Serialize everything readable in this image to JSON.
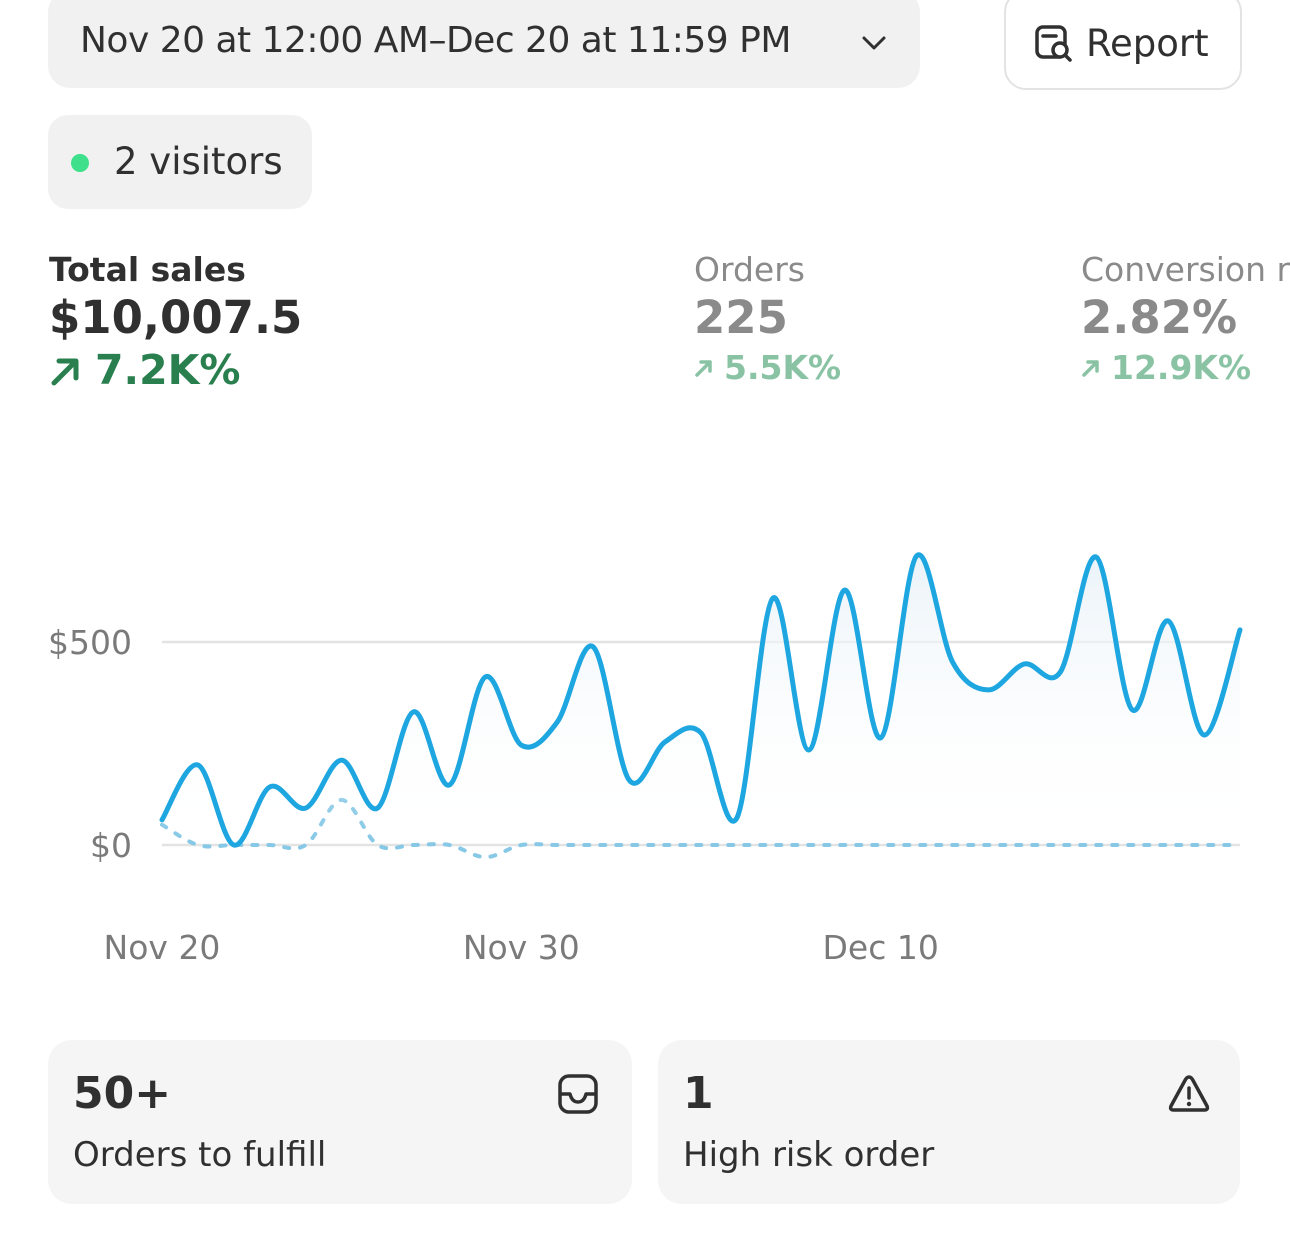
{
  "header": {
    "date_range": "Nov 20 at 12:00 AM–Dec 20 at 11:59 PM",
    "report": "Report",
    "visitors": "2 visitors"
  },
  "metrics": [
    {
      "label": "Total sales",
      "value": "$10,007.5",
      "change": "7.2K%"
    },
    {
      "label": "Orders",
      "value": "225",
      "change": "5.5K%"
    },
    {
      "label": "Conversion rate",
      "value": "2.82%",
      "change": "12.9K%"
    }
  ],
  "chart_data": {
    "type": "line",
    "categories": [
      "Nov 20",
      null,
      null,
      null,
      null,
      null,
      null,
      null,
      null,
      null,
      "Nov 30",
      null,
      null,
      null,
      null,
      null,
      null,
      null,
      null,
      null,
      "Dec 10",
      null,
      null,
      null,
      null,
      null,
      null,
      null,
      null,
      null,
      null
    ],
    "series": [
      {
        "color": "#1ea6e0",
        "dashed": false,
        "values": [
          62,
          197,
          0,
          143,
          91,
          209,
          91,
          328,
          148,
          414,
          246,
          303,
          488,
          160,
          254,
          276,
          67,
          608,
          234,
          628,
          264,
          712,
          451,
          382,
          446,
          426,
          709,
          333,
          552,
          271,
          530
        ]
      },
      {
        "color": "#86c8e6",
        "dashed": true,
        "values": [
          50,
          0,
          0,
          0,
          0,
          111,
          0,
          0,
          0,
          -30,
          0,
          0,
          0,
          0,
          0,
          0,
          0,
          0,
          0,
          0,
          0,
          0,
          0,
          0,
          0,
          0,
          0,
          0,
          0,
          0,
          0
        ]
      }
    ],
    "ylim": [
      -60,
      750
    ],
    "yticks": [
      {
        "value": 0,
        "label": "$0"
      },
      {
        "value": 500,
        "label": "$500"
      }
    ],
    "grid": true
  },
  "cards": [
    {
      "value": "50+",
      "label": "Orders to fulfill"
    },
    {
      "value": "1",
      "label": "High risk order"
    }
  ]
}
